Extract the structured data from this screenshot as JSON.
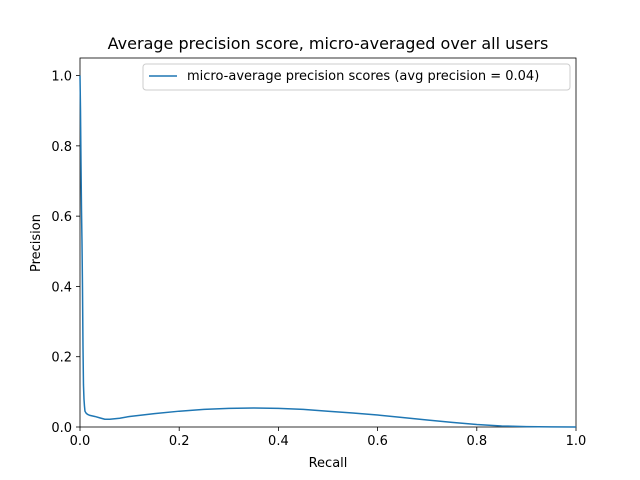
{
  "chart_data": {
    "type": "line",
    "title": "Average precision score, micro-averaged over all users",
    "xlabel": "Recall",
    "ylabel": "Precision",
    "xlim": [
      0.0,
      1.0
    ],
    "ylim": [
      0.0,
      1.05
    ],
    "xticks": [
      0.0,
      0.2,
      0.4,
      0.6,
      0.8,
      1.0
    ],
    "xtick_labels": [
      "0.0",
      "0.2",
      "0.4",
      "0.6",
      "0.8",
      "1.0"
    ],
    "yticks": [
      0.0,
      0.2,
      0.4,
      0.6,
      0.8,
      1.0
    ],
    "ytick_labels": [
      "0.0",
      "0.2",
      "0.4",
      "0.6",
      "0.8",
      "1.0"
    ],
    "grid": false,
    "legend_position": "top-right",
    "series": [
      {
        "name": "micro-average precision scores (avg precision = 0.04)",
        "color": "#1f77b4",
        "x": [
          0.0,
          0.001,
          0.002,
          0.003,
          0.004,
          0.005,
          0.006,
          0.007,
          0.008,
          0.009,
          0.01,
          0.012,
          0.015,
          0.02,
          0.03,
          0.04,
          0.05,
          0.06,
          0.08,
          0.1,
          0.15,
          0.2,
          0.25,
          0.3,
          0.35,
          0.4,
          0.45,
          0.5,
          0.55,
          0.6,
          0.65,
          0.7,
          0.75,
          0.8,
          0.85,
          0.9,
          0.95,
          1.0
        ],
        "y": [
          1.0,
          0.9,
          0.75,
          0.62,
          0.53,
          0.4,
          0.23,
          0.12,
          0.08,
          0.06,
          0.045,
          0.04,
          0.036,
          0.033,
          0.03,
          0.026,
          0.022,
          0.022,
          0.025,
          0.03,
          0.038,
          0.045,
          0.05,
          0.053,
          0.054,
          0.053,
          0.05,
          0.045,
          0.04,
          0.034,
          0.027,
          0.02,
          0.013,
          0.007,
          0.003,
          0.001,
          0.0003,
          0.0
        ]
      }
    ]
  }
}
